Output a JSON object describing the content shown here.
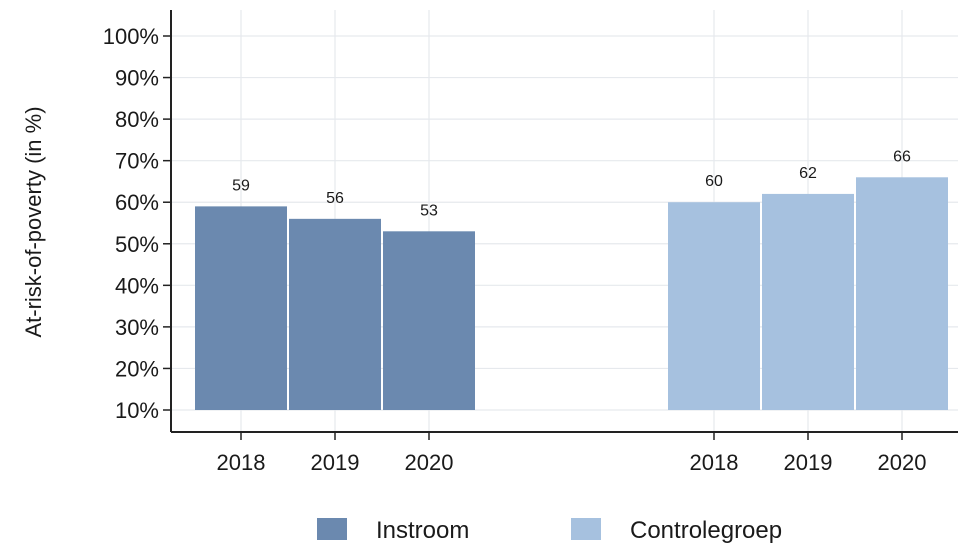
{
  "chart_data": {
    "type": "bar",
    "title": "",
    "xlabel": "",
    "ylabel": "At-risk-of-poverty (in %)",
    "yticks": [
      "10%",
      "20%",
      "30%",
      "40%",
      "50%",
      "60%",
      "70%",
      "80%",
      "90%",
      "100%"
    ],
    "ylim": [
      10,
      100
    ],
    "grid": true,
    "legend_position": "bottom",
    "categories": [
      "2018",
      "2019",
      "2020"
    ],
    "series": [
      {
        "name": "Instroom",
        "color": "#6b89af",
        "values": [
          59,
          56,
          53
        ]
      },
      {
        "name": "Controlegroep",
        "color": "#a6c1df",
        "values": [
          60,
          62,
          66
        ]
      }
    ]
  }
}
